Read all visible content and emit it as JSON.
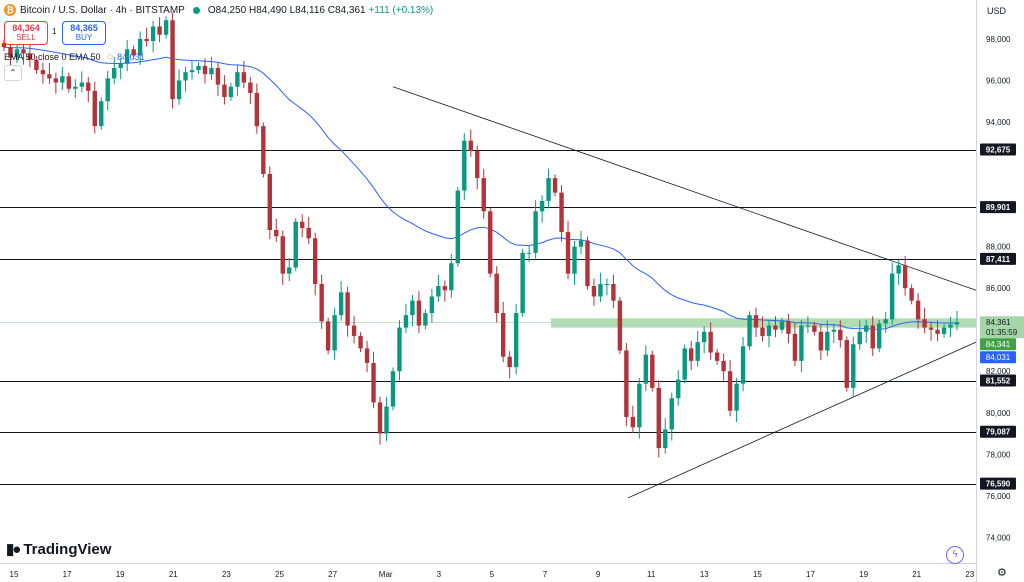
{
  "header": {
    "symbol": "Bitcoin / U.S. Dollar · 4h · BITSTAMP",
    "ohlc": "O84,250 H84,490 L84,116 C84,361",
    "change": "+111 (+0.13%)",
    "sell_price": "84,364",
    "sell_label": "SELL",
    "spread": "1",
    "buy_price": "84,365",
    "buy_label": "BUY",
    "ema_label": "EMA 50 close 0 EMA 50",
    "ema_value": "84,031",
    "currency": "USD"
  },
  "brand": {
    "name": "TradingView"
  },
  "colors": {
    "up": "#089981",
    "down": "#b2333a",
    "ema": "#2962ff",
    "zone": "#a5d6a7",
    "current": "#43a047"
  },
  "chart_data": {
    "type": "candlestick",
    "symbol": "BTCUSD",
    "timeframe": "4h",
    "ylim": [
      73000,
      100000
    ],
    "y_ticks": [
      74000,
      76000,
      78000,
      80000,
      82000,
      86000,
      88000,
      90000,
      94000,
      96000,
      98000
    ],
    "x_ticks": [
      "15",
      "17",
      "19",
      "21",
      "23",
      "25",
      "27",
      "Mar",
      "3",
      "5",
      "7",
      "9",
      "11",
      "13",
      "15",
      "17",
      "19",
      "21",
      "23"
    ],
    "horizontal_levels": [
      {
        "label": "92,675",
        "value": 92675
      },
      {
        "label": "89,901",
        "value": 89901
      },
      {
        "label": "87,411",
        "value": 87411
      },
      {
        "label": "81,552",
        "value": 81552
      },
      {
        "label": "79,087",
        "value": 79087
      },
      {
        "label": "76,590",
        "value": 76590
      }
    ],
    "price_tags": [
      {
        "label": "84,361",
        "sub": "01:35:59",
        "value": 84361,
        "kind": "last"
      },
      {
        "label": "84,341",
        "value": 84341,
        "kind": "zone"
      },
      {
        "label": "84,031",
        "value": 84031,
        "kind": "ema"
      }
    ],
    "support_zone": {
      "from_date": "Mar 7",
      "low": 84100,
      "high": 84550
    },
    "trendlines": [
      {
        "name": "descending",
        "from": {
          "date": "Feb 27",
          "price": 95700
        },
        "to": {
          "date": "Mar 23",
          "price": 85800
        }
      },
      {
        "name": "ascending",
        "from": {
          "date": "Mar 10",
          "price": 75900
        },
        "to": {
          "date": "Mar 23",
          "price": 83400
        }
      }
    ],
    "closes": [
      97600,
      97100,
      97500,
      97300,
      97000,
      96500,
      96300,
      96100,
      95900,
      96200,
      95600,
      95700,
      95900,
      95500,
      93800,
      95000,
      96100,
      96600,
      96800,
      97500,
      97200,
      98000,
      97900,
      98600,
      98200,
      98900,
      95100,
      96000,
      96400,
      96500,
      96700,
      96300,
      96600,
      95800,
      95200,
      95700,
      96400,
      95900,
      95400,
      93800,
      91500,
      88800,
      88500,
      86700,
      87000,
      89200,
      88900,
      88400,
      86200,
      84400,
      83000,
      84700,
      85800,
      84200,
      83700,
      83100,
      82400,
      80500,
      79000,
      80300,
      82000,
      84100,
      84700,
      85400,
      84200,
      84800,
      85600,
      86100,
      85900,
      87200,
      90700,
      93100,
      92600,
      91300,
      89700,
      86700,
      84800,
      82700,
      82200,
      84800,
      87700,
      87700,
      89700,
      90200,
      91300,
      90600,
      88700,
      86700,
      88000,
      88300,
      86100,
      85600,
      86200,
      86200,
      85400,
      83000,
      79800,
      79300,
      81400,
      82800,
      81200,
      78300,
      79200,
      80700,
      81600,
      83100,
      82500,
      83400,
      83900,
      82900,
      82500,
      82000,
      80100,
      81400,
      83200,
      84700,
      84100,
      83700,
      84200,
      84000,
      84400,
      83800,
      82500,
      84200,
      84200,
      83900,
      83000,
      83900,
      84000,
      83500,
      81200,
      83300,
      83900,
      84200,
      83100,
      84300,
      84500,
      86700,
      87100,
      86000,
      85400,
      84500,
      84100,
      84000,
      83800,
      84100,
      84250,
      84361
    ]
  }
}
